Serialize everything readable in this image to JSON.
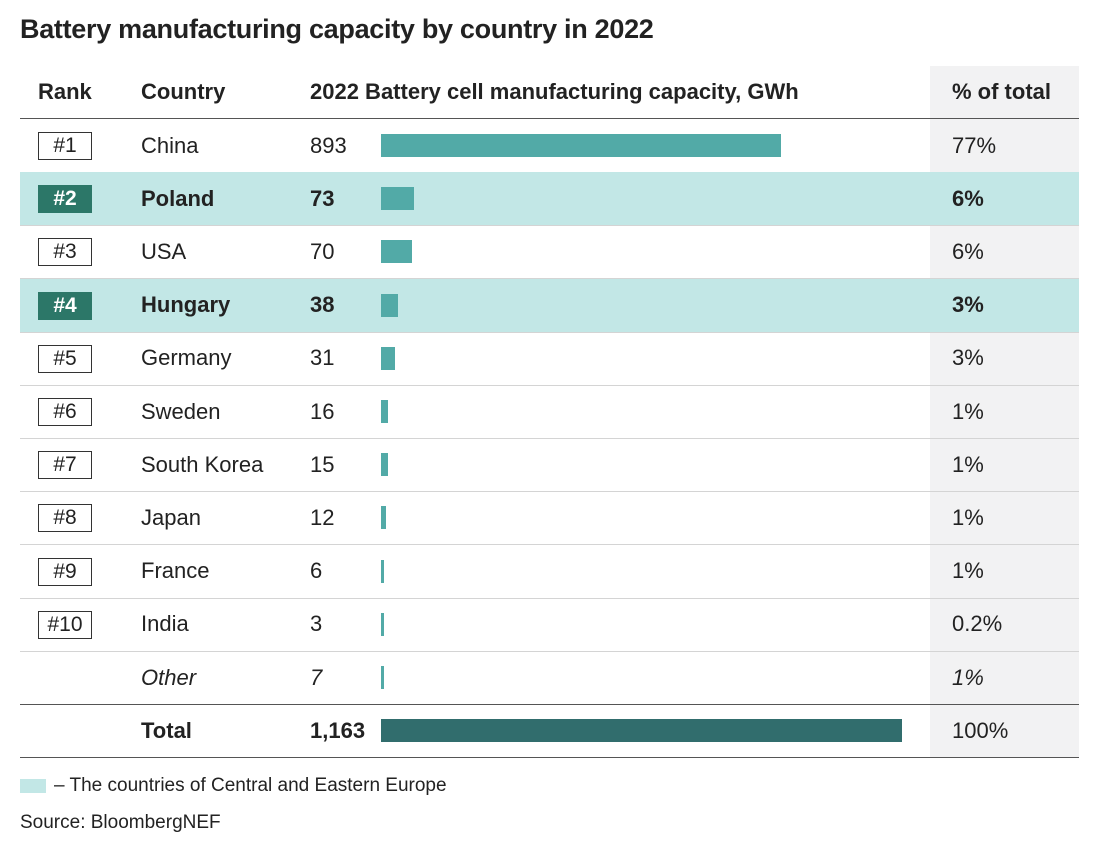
{
  "chart_data": {
    "type": "table",
    "title": "Battery manufacturing capacity by country in 2022",
    "columns": [
      "Rank",
      "Country",
      "2022 Battery cell manufacturing capacity, GWh",
      "% of total"
    ],
    "rows": [
      {
        "rank": "#1",
        "country": "China",
        "value": 893,
        "value_label": "893",
        "pct": "77%",
        "highlight": false
      },
      {
        "rank": "#2",
        "country": "Poland",
        "value": 73,
        "value_label": "73",
        "pct": "6%",
        "highlight": true
      },
      {
        "rank": "#3",
        "country": "USA",
        "value": 70,
        "value_label": "70",
        "pct": "6%",
        "highlight": false
      },
      {
        "rank": "#4",
        "country": "Hungary",
        "value": 38,
        "value_label": "38",
        "pct": "3%",
        "highlight": true
      },
      {
        "rank": "#5",
        "country": "Germany",
        "value": 31,
        "value_label": "31",
        "pct": "3%",
        "highlight": false
      },
      {
        "rank": "#6",
        "country": "Sweden",
        "value": 16,
        "value_label": "16",
        "pct": "1%",
        "highlight": false
      },
      {
        "rank": "#7",
        "country": "South Korea",
        "value": 15,
        "value_label": "15",
        "pct": "1%",
        "highlight": false
      },
      {
        "rank": "#8",
        "country": "Japan",
        "value": 12,
        "value_label": "12",
        "pct": "1%",
        "highlight": false
      },
      {
        "rank": "#9",
        "country": "France",
        "value": 6,
        "value_label": "6",
        "pct": "1%",
        "highlight": false
      },
      {
        "rank": "#10",
        "country": "India",
        "value": 3,
        "value_label": "3",
        "pct": "0.2%",
        "highlight": false
      },
      {
        "rank": "",
        "country": "Other",
        "value": 7,
        "value_label": "7",
        "pct": "1%",
        "highlight": false
      }
    ],
    "total": {
      "label": "Total",
      "value": 1163,
      "value_label": "1,163",
      "pct": "100%"
    },
    "legend": "– The countries of Central and Eastern Europe",
    "source": "Source: BloombergNEF",
    "colors": {
      "bar": "#52aaa7",
      "total_bar": "#316d6d",
      "highlight_row": "#c2e7e6",
      "highlight_badge": "#2c7768"
    }
  }
}
